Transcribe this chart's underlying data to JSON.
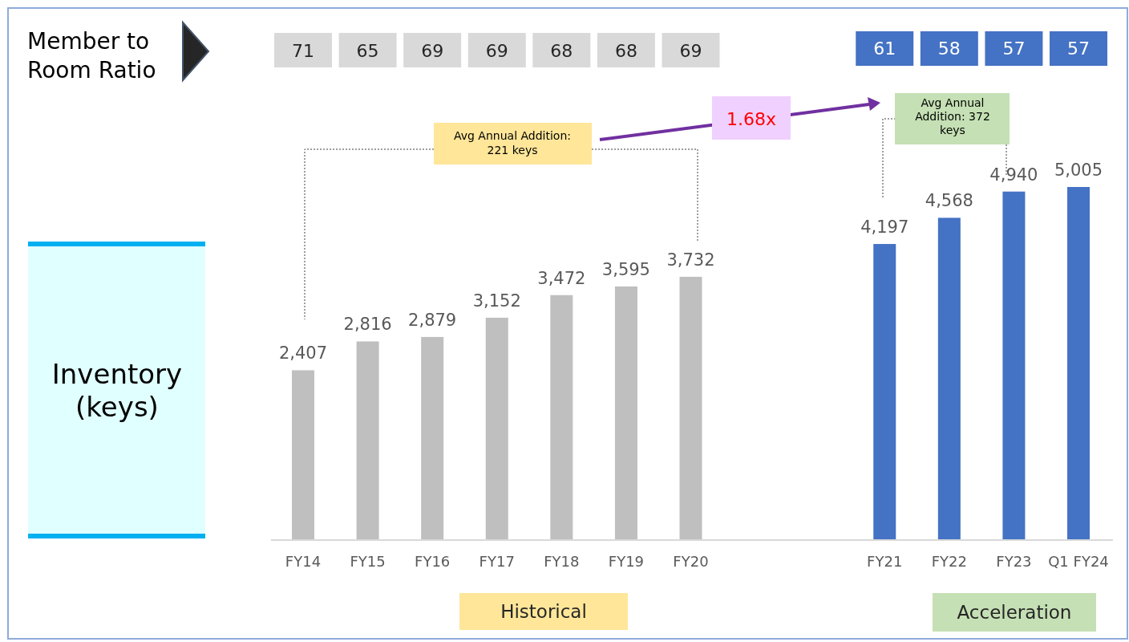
{
  "chart_data": {
    "type": "bar",
    "ylabel": "Inventory (keys)",
    "categories": [
      "FY14",
      "FY15",
      "FY16",
      "FY17",
      "FY18",
      "FY19",
      "FY20",
      null,
      null,
      "FY21",
      "FY22",
      "FY23",
      "Q1 FY24"
    ],
    "values": [
      2407,
      2816,
      2879,
      3152,
      3472,
      3595,
      3732,
      null,
      null,
      4197,
      4568,
      4940,
      5005
    ],
    "value_labels": [
      "2,407",
      "2,816",
      "2,879",
      "3,152",
      "3,472",
      "3,595",
      "3,732",
      null,
      null,
      "4,197",
      "4,568",
      "4,940",
      "5,005"
    ],
    "colors": [
      "#bfbfbf",
      "#bfbfbf",
      "#bfbfbf",
      "#bfbfbf",
      "#bfbfbf",
      "#bfbfbf",
      "#bfbfbf",
      null,
      null,
      "#4472c4",
      "#4472c4",
      "#4472c4",
      "#4472c4"
    ],
    "annotations": [
      "Member to Room Ratio",
      "71",
      "65",
      "69",
      "69",
      "68",
      "68",
      "69",
      "61",
      "58",
      "57",
      "57",
      "Avg Annual Addition: 221 keys",
      "Avg Annual Addition: 372 keys",
      "1.68x",
      "Historical",
      "Acceleration"
    ]
  }
}
